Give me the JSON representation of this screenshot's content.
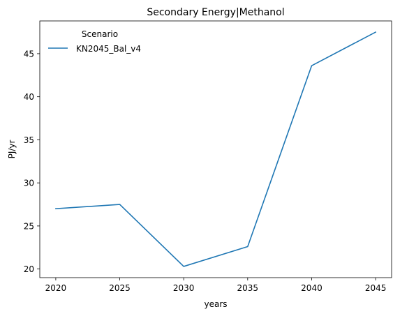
{
  "chart_data": {
    "type": "line",
    "title": "Secondary Energy|Methanol",
    "xlabel": "years",
    "ylabel": "PJ/yr",
    "x": [
      2020,
      2025,
      2030,
      2035,
      2040,
      2045
    ],
    "series": [
      {
        "name": "KN2045_Bal_v4",
        "values": [
          27.0,
          27.5,
          20.3,
          22.6,
          43.6,
          47.5
        ],
        "color": "#1f77b4"
      }
    ],
    "xlim": [
      2018.75,
      2046.25
    ],
    "ylim": [
      19.0,
      48.8
    ],
    "xticks": [
      "2020",
      "2025",
      "2030",
      "2035",
      "2040",
      "2045"
    ],
    "yticks": [
      "20",
      "25",
      "30",
      "35",
      "40",
      "45"
    ],
    "legend": {
      "title": "Scenario",
      "placement": "top-left"
    },
    "grid": false
  }
}
